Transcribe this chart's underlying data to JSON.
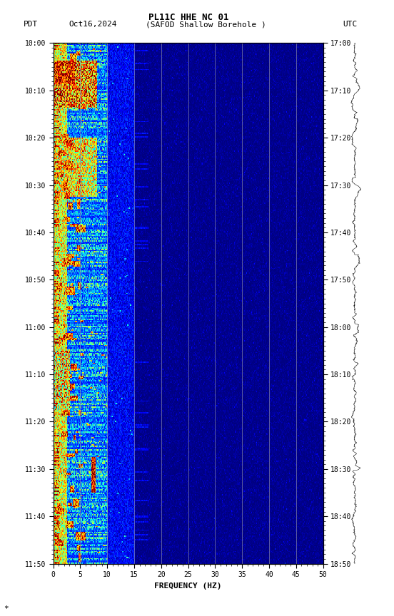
{
  "title_line1": "PL11C HHE NC 01",
  "title_line2_left": "PDT",
  "title_line2_date": "Oct16,2024",
  "title_line2_mid": "(SAFOD Shallow Borehole )",
  "title_line2_right": "UTC",
  "xlabel": "FREQUENCY (HZ)",
  "freq_min": 0,
  "freq_max": 50,
  "pdt_ticks": [
    "10:00",
    "10:10",
    "10:20",
    "10:30",
    "10:40",
    "10:50",
    "11:00",
    "11:10",
    "11:20",
    "11:30",
    "11:40",
    "11:50"
  ],
  "utc_ticks": [
    "17:00",
    "17:10",
    "17:20",
    "17:30",
    "17:40",
    "17:50",
    "18:00",
    "18:10",
    "18:20",
    "18:30",
    "18:40",
    "18:50"
  ],
  "freq_ticks": [
    0,
    5,
    10,
    15,
    20,
    25,
    30,
    35,
    40,
    45,
    50
  ],
  "vertical_lines_freq": [
    5,
    10,
    15,
    20,
    25,
    30,
    35,
    40,
    45
  ],
  "bg_color": "white",
  "spectrogram_bg": "#00008B",
  "fig_width": 5.52,
  "fig_height": 8.64,
  "dpi": 100
}
